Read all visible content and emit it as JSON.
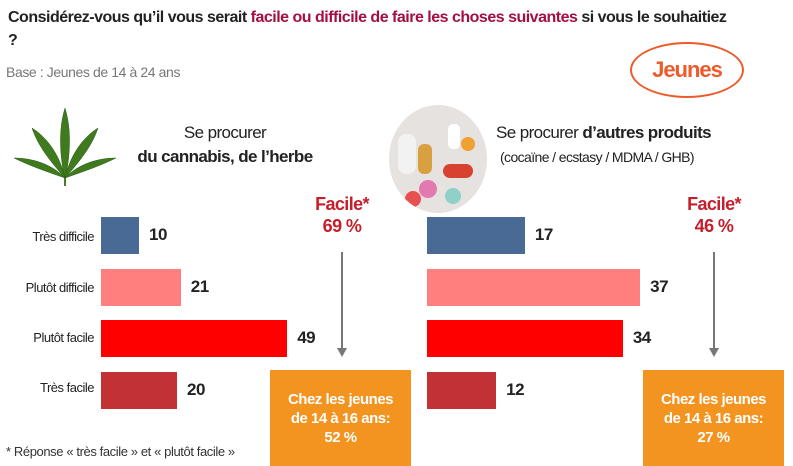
{
  "title": {
    "part1": "Considérez-vous qu’il vous serait ",
    "highlight": "facile ou difficile de faire les choses suivantes",
    "part2": " si vous le souhaitiez ?"
  },
  "base": "Base : Jeunes de 14 à 24 ans",
  "badge": "Jeunes",
  "colors": {
    "tres_difficile": "#4a6a96",
    "plutot_difficile": "#ff7f7f",
    "plutot_facile": "#ff0000",
    "tres_facile": "#c23234",
    "highlight": "#a3103f",
    "orange": "#f39320"
  },
  "chart_data": [
    {
      "type": "bar",
      "title_line1": "Se procurer",
      "title_line2": "du cannabis, de l’herbe",
      "icon": "cannabis-leaf-icon",
      "categories": [
        "Très difficile",
        "Plutôt difficile",
        "Plutôt facile",
        "Très facile"
      ],
      "values": [
        10,
        21,
        49,
        20
      ],
      "facile_label": "Facile*",
      "facile_value": "69 %",
      "subgroup_line1": "Chez les jeunes",
      "subgroup_line2": "de 14 à 16 ans:",
      "subgroup_value": "52 %"
    },
    {
      "type": "bar",
      "title_line1": "Se procurer ",
      "title_bold": "d’autres produits",
      "title_line2": "(cocaïne / ecstasy / MDMA / GHB)",
      "icon": "pills-icon",
      "categories": [
        "Très difficile",
        "Plutôt difficile",
        "Plutôt facile",
        "Très facile"
      ],
      "values": [
        17,
        37,
        34,
        12
      ],
      "facile_label": "Facile*",
      "facile_value": "46 %",
      "subgroup_line1": "Chez les jeunes",
      "subgroup_line2": "de 14 à 16 ans:",
      "subgroup_value": "27 %"
    }
  ],
  "footnote": "* Réponse « très facile » et « plutôt facile »"
}
